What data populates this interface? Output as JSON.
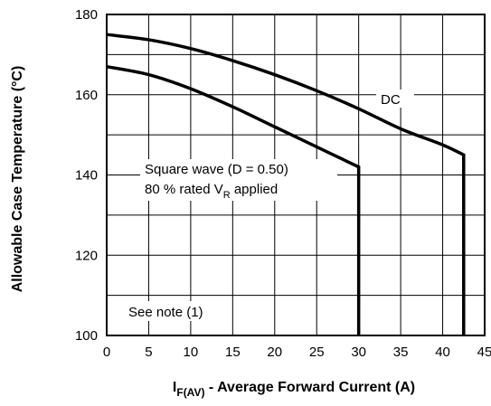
{
  "chart_data": {
    "type": "line",
    "title": "",
    "xlabel": {
      "main": "I",
      "sub": "F(AV)",
      "rest": " - Average Forward Current (A)"
    },
    "ylabel": "Allowable Case Temperature (°C)",
    "xlim": [
      0,
      45
    ],
    "ylim": [
      100,
      180
    ],
    "x_ticks": [
      0,
      5,
      10,
      15,
      20,
      25,
      30,
      35,
      40,
      45
    ],
    "y_ticks": [
      100,
      120,
      140,
      160,
      180
    ],
    "grid": true,
    "legend": "none",
    "series": [
      {
        "name": "DC",
        "color": "#000000",
        "points": [
          [
            0,
            175
          ],
          [
            5,
            173.7
          ],
          [
            10,
            171.5
          ],
          [
            15,
            168.5
          ],
          [
            20,
            165
          ],
          [
            25,
            161
          ],
          [
            30,
            156.5
          ],
          [
            35,
            151.5
          ],
          [
            40,
            147.5
          ],
          [
            42.5,
            145
          ],
          [
            42.5,
            100
          ]
        ]
      },
      {
        "name": "Square wave (D = 0.50)",
        "color": "#000000",
        "points": [
          [
            0,
            167
          ],
          [
            5,
            165
          ],
          [
            10,
            161.5
          ],
          [
            15,
            157
          ],
          [
            20,
            152
          ],
          [
            25,
            147
          ],
          [
            30,
            142
          ],
          [
            30,
            100
          ]
        ]
      }
    ],
    "annotations": {
      "dc_label": "DC",
      "square_line1": "Square wave (D = 0.50)",
      "square_line2_main": "80 % rated V",
      "square_line2_sub": "R",
      "square_line2_rest": " applied",
      "note": "See note (1)"
    }
  }
}
